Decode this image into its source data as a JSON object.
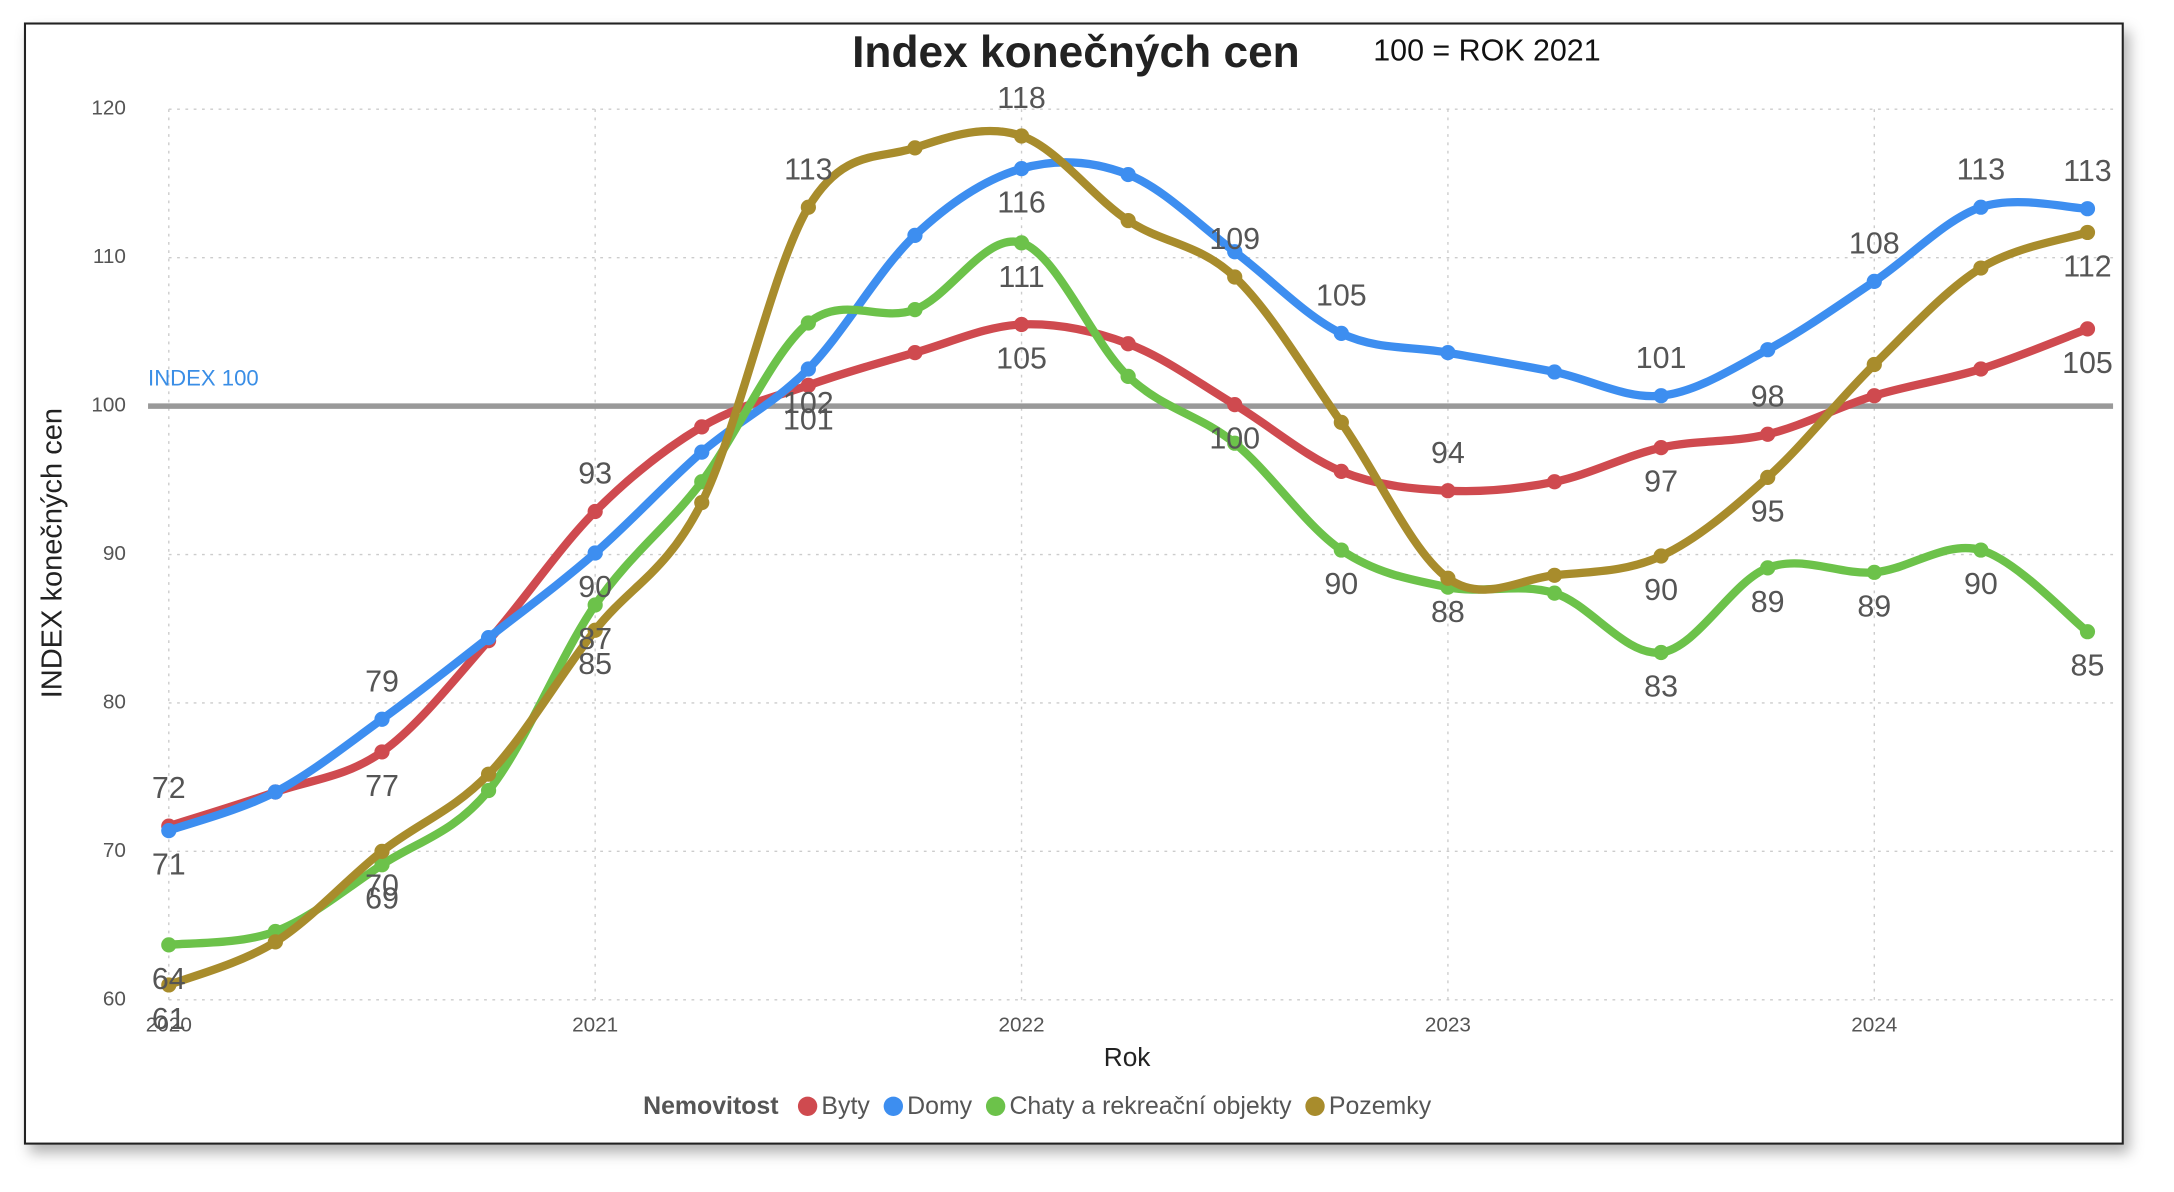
{
  "chart_data": {
    "type": "line",
    "title": "Index konečných cen",
    "subtitle": "100 = ROK 2021",
    "x_label": "Rok",
    "y_label": "INDEX konečných cen",
    "legend_title": "Nemovitost",
    "x": [
      2020,
      2020.25,
      2020.5,
      2020.75,
      2021,
      2021.25,
      2021.5,
      2021.75,
      2022,
      2022.25,
      2022.5,
      2022.75,
      2023,
      2023.25,
      2023.5,
      2023.75,
      2024,
      2024.25,
      2024.5
    ],
    "xlim": [
      2020,
      2024.56
    ],
    "xticks": [
      2020,
      2021,
      2022,
      2023,
      2024
    ],
    "ylim": [
      60,
      120
    ],
    "yticks": [
      60,
      70,
      80,
      90,
      100,
      110,
      120
    ],
    "grid": true,
    "reference_line": {
      "value": 100,
      "label": "INDEX 100",
      "color": "#999999",
      "label_color": "#3a8ee6"
    },
    "series": [
      {
        "name": "Byty",
        "color": "#cf4a4f",
        "values": [
          71.7,
          74.0,
          76.7,
          84.2,
          92.9,
          98.6,
          101.4,
          103.6,
          105.5,
          104.2,
          100.1,
          95.6,
          94.3,
          94.9,
          97.2,
          98.1,
          100.7,
          102.5,
          105.2
        ],
        "value_labels": [
          "72",
          null,
          "77",
          null,
          "93",
          null,
          "101",
          null,
          "105",
          null,
          "100",
          null,
          "94",
          null,
          "97",
          "98",
          null,
          null,
          "105"
        ]
      },
      {
        "name": "Domy",
        "color": "#3d8ef0",
        "values": [
          71.4,
          74.0,
          78.9,
          84.4,
          90.1,
          96.9,
          102.5,
          111.5,
          116.0,
          115.6,
          110.4,
          104.9,
          103.6,
          102.3,
          100.7,
          103.8,
          108.4,
          113.4,
          113.3
        ],
        "value_labels": [
          "71",
          null,
          "79",
          null,
          "90",
          null,
          "102",
          null,
          "116",
          null,
          null,
          "105",
          null,
          null,
          "101",
          null,
          "108",
          "113",
          "113"
        ]
      },
      {
        "name": "Chaty a rekreační objekty",
        "color": "#6cc24a",
        "values": [
          63.7,
          64.6,
          69.1,
          74.1,
          86.6,
          94.9,
          105.6,
          106.5,
          111.0,
          102.0,
          97.5,
          90.3,
          87.8,
          87.4,
          83.4,
          89.1,
          88.8,
          90.3,
          84.8
        ],
        "value_labels": [
          "64",
          null,
          "69",
          null,
          "87",
          null,
          null,
          null,
          "111",
          null,
          null,
          "90",
          null,
          null,
          "83",
          "89",
          "89",
          "90",
          "85"
        ]
      },
      {
        "name": "Pozemky",
        "color": "#a88c2c",
        "values": [
          61.0,
          63.9,
          70.0,
          75.2,
          84.9,
          93.5,
          113.4,
          117.4,
          118.2,
          112.5,
          108.7,
          98.9,
          88.4,
          88.6,
          89.9,
          95.2,
          102.8,
          109.3,
          111.7
        ],
        "value_labels": [
          "61",
          null,
          "70",
          null,
          "85",
          null,
          "113",
          null,
          "118",
          null,
          "109",
          null,
          "88",
          null,
          "90",
          "95",
          null,
          null,
          "112"
        ]
      }
    ]
  }
}
